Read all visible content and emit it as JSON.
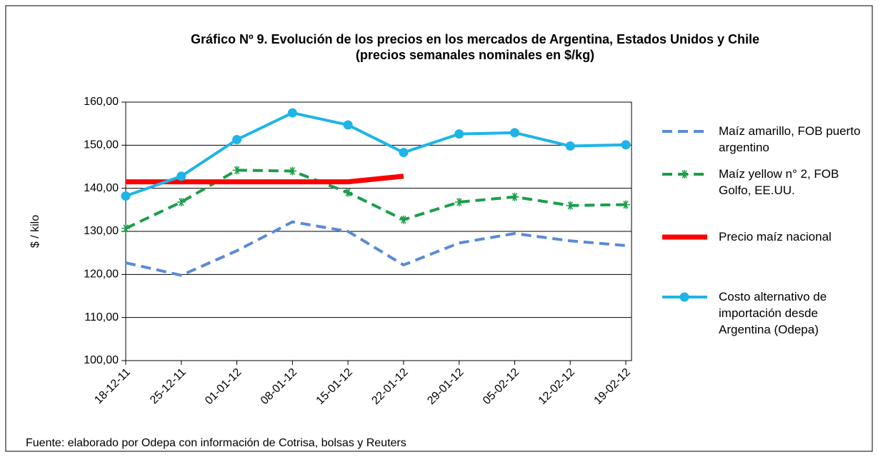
{
  "chart_data": {
    "type": "line",
    "title": "Gráfico Nº 9. Evolución de los precios en los mercados de Argentina, Estados Unidos y  Chile",
    "subtitle": "(precios semanales nominales en $/kg)",
    "y_label": "$ / kilo",
    "source": "Fuente: elaborado por Odepa con información de Cotrisa, bolsas y Reuters",
    "categories": [
      "18-12-11",
      "25-12-11",
      "01-01-12",
      "08-01-12",
      "15-01-12",
      "22-01-12",
      "29-01-12",
      "05-02-12",
      "12-02-12",
      "19-02-12"
    ],
    "ylim": [
      100,
      160
    ],
    "yticks": [
      {
        "value": 100,
        "label": "100,00"
      },
      {
        "value": 110,
        "label": "110,00"
      },
      {
        "value": 120,
        "label": "120,00"
      },
      {
        "value": 130,
        "label": "130,00"
      },
      {
        "value": 140,
        "label": "140,00"
      },
      {
        "value": 150,
        "label": "150,00"
      },
      {
        "value": 160,
        "label": "160,00"
      }
    ],
    "grid": true,
    "legend": "right",
    "series": [
      {
        "name": "Maíz amarillo, FOB puerto argentino",
        "color": "#5a8ad6",
        "style": "dashed",
        "marker": "none",
        "values": [
          122.7,
          119.8,
          125.5,
          132.2,
          130.0,
          122.2,
          127.3,
          129.5,
          127.8,
          126.7
        ]
      },
      {
        "name": "Maíz yellow n° 2, FOB Golfo, EE.UU.",
        "color": "#1a9e4a",
        "style": "dashed",
        "marker": "star",
        "values": [
          130.7,
          136.8,
          144.2,
          144.0,
          139.0,
          132.7,
          136.8,
          138.0,
          136.0,
          136.2
        ]
      },
      {
        "name": "Precio maíz nacional",
        "color": "#ff0000",
        "style": "solid",
        "marker": "none",
        "values": [
          141.5,
          141.5,
          141.5,
          141.5,
          141.5,
          142.8,
          null,
          null,
          null,
          null
        ]
      },
      {
        "name": "Costo alternativo de importación desde Argentina (Odepa)",
        "color": "#1eb4e8",
        "style": "solid",
        "marker": "circle",
        "values": [
          138.2,
          142.8,
          151.3,
          157.5,
          154.7,
          148.3,
          152.6,
          152.9,
          149.8,
          150.1
        ]
      }
    ]
  }
}
